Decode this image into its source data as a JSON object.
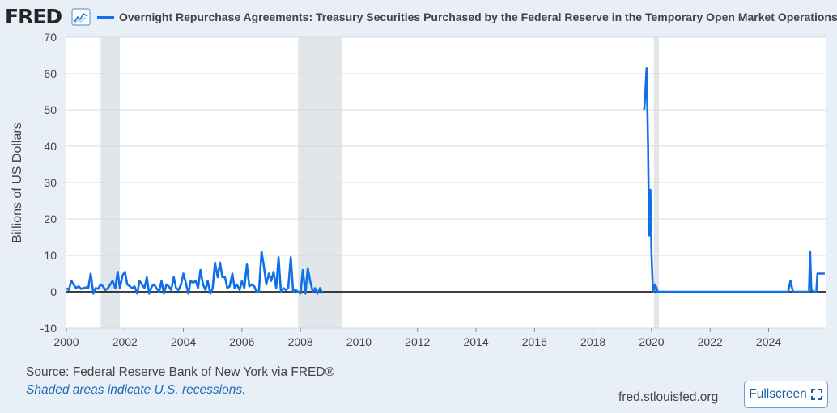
{
  "header": {
    "logo_text": "FRED",
    "title": "Overnight Repurchase Agreements: Treasury Securities Purchased by the Federal Reserve in the Temporary Open Market Operations"
  },
  "footer": {
    "source": "Source: Federal Reserve Bank of New York via FRED®",
    "note": "Shaded areas indicate U.S. recessions.",
    "site": "fred.stlouisfed.org",
    "fullscreen_label": "Fullscreen"
  },
  "colors": {
    "series": "#1170e8",
    "recession": "#e1e6eb",
    "background": "#e8eff6"
  },
  "chart_data": {
    "type": "line",
    "ylabel": "Billions of US Dollars",
    "ylim": [
      -10,
      70
    ],
    "yticks": [
      -10,
      0,
      10,
      20,
      30,
      40,
      50,
      60,
      70
    ],
    "xlim": [
      2000,
      2025.95
    ],
    "xticks": [
      2000,
      2002,
      2004,
      2006,
      2008,
      2010,
      2012,
      2014,
      2016,
      2018,
      2020,
      2022,
      2024
    ],
    "grid": "horizontal",
    "recessions": [
      [
        2001.17,
        2001.83
      ],
      [
        2007.92,
        2009.42
      ],
      [
        2020.08,
        2020.25
      ]
    ],
    "series": [
      {
        "x": [
          2000.0,
          2000.08,
          2000.17,
          2000.25,
          2000.33,
          2000.42,
          2000.5,
          2000.58,
          2000.67,
          2000.75,
          2000.83,
          2000.92,
          2001.0,
          2001.08,
          2001.17,
          2001.25,
          2001.33,
          2001.42,
          2001.5,
          2001.58,
          2001.67,
          2001.75,
          2001.83,
          2001.92,
          2002.0,
          2002.08,
          2002.17,
          2002.25,
          2002.33,
          2002.42,
          2002.5,
          2002.58,
          2002.67,
          2002.75,
          2002.83,
          2002.92,
          2003.0,
          2003.08,
          2003.17,
          2003.25,
          2003.33,
          2003.42,
          2003.5,
          2003.58,
          2003.67,
          2003.75,
          2003.83,
          2003.92,
          2004.0,
          2004.08,
          2004.17,
          2004.25,
          2004.33,
          2004.42,
          2004.5,
          2004.58,
          2004.67,
          2004.75,
          2004.83,
          2004.92,
          2005.0,
          2005.08,
          2005.17,
          2005.25,
          2005.33,
          2005.42,
          2005.5,
          2005.58,
          2005.67,
          2005.75,
          2005.83,
          2005.92,
          2006.0,
          2006.08,
          2006.17,
          2006.25,
          2006.33,
          2006.42,
          2006.5,
          2006.58,
          2006.67,
          2006.75,
          2006.83,
          2006.92,
          2007.0,
          2007.08,
          2007.17,
          2007.25,
          2007.33,
          2007.42,
          2007.5,
          2007.58,
          2007.67,
          2007.75,
          2007.83,
          2007.92,
          2008.0,
          2008.08,
          2008.17,
          2008.25,
          2008.33,
          2008.42,
          2008.5,
          2008.58,
          2008.67,
          2008.75
        ],
        "y": [
          1,
          0.5,
          3,
          2,
          1,
          1.5,
          0.8,
          1,
          1.2,
          1,
          5,
          -0.5,
          1,
          0.8,
          2,
          1.5,
          0.5,
          1,
          2,
          3,
          1,
          5.5,
          1,
          4.5,
          5.5,
          2,
          1.5,
          1,
          1.5,
          -0.5,
          3,
          2,
          1,
          4,
          -0.5,
          1.5,
          2,
          1,
          0,
          3,
          -0.5,
          2,
          1.5,
          0.5,
          4,
          1,
          0.5,
          2,
          5,
          2.5,
          -0.5,
          3,
          2.5,
          3,
          1,
          6,
          2,
          0.5,
          3,
          -0.5,
          1,
          8,
          4,
          8,
          4,
          4,
          1,
          1.5,
          5,
          1,
          2,
          0.5,
          3,
          1,
          7.5,
          1.5,
          2,
          1.5,
          0,
          0,
          11,
          7,
          2,
          5,
          3,
          5.5,
          1,
          9.5,
          0,
          1,
          0.5,
          1,
          9.5,
          0,
          0.5,
          0,
          -0.5,
          6,
          -0.5,
          6.5,
          3,
          0,
          1,
          -0.5,
          1,
          -0.5
        ]
      },
      {
        "x": [
          2019.75,
          2019.79,
          2019.83,
          2019.88,
          2019.92,
          2019.96,
          2020.0,
          2020.04,
          2020.08,
          2020.12,
          2020.17,
          2020.21,
          2020.25
        ],
        "y": [
          50,
          55,
          61.5,
          40,
          15.5,
          28,
          10,
          2,
          0,
          2,
          1,
          0,
          0
        ]
      },
      {
        "x": [
          2020.25,
          2024.67,
          2024.75,
          2024.83,
          2025.38,
          2025.42,
          2025.46,
          2025.54,
          2025.63,
          2025.67,
          2025.75,
          2025.83,
          2025.92
        ],
        "y": [
          0,
          0,
          3,
          0,
          0,
          11,
          0.5,
          0,
          0,
          5,
          5,
          5,
          5
        ]
      }
    ]
  }
}
